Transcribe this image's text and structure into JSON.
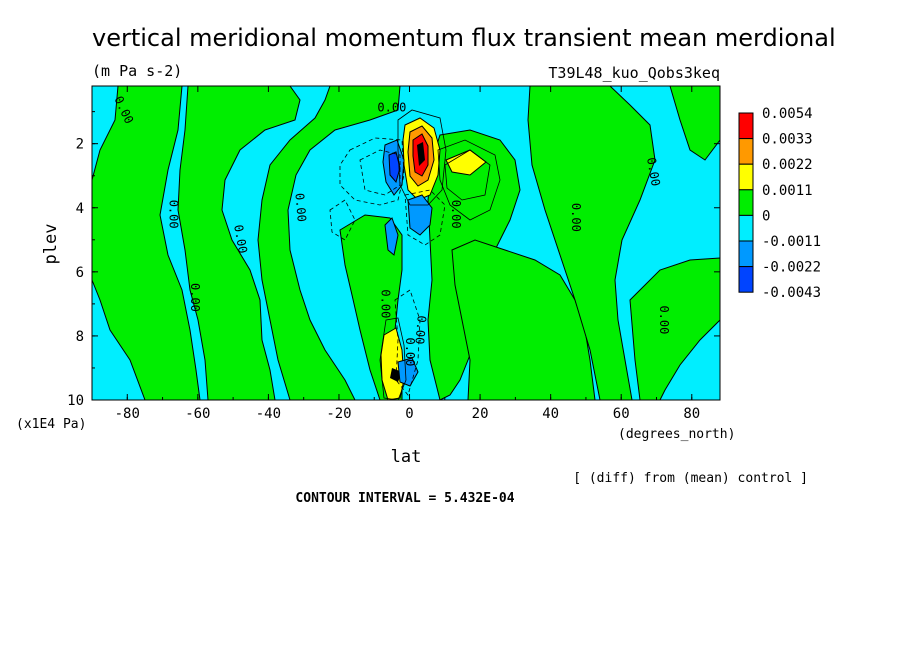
{
  "chart_data": {
    "type": "heatmap",
    "title": "vertical meridional momentum flux transient mean merdional",
    "units": "(m Pa s-2)",
    "run_label": "T39L48_kuo_Qobs3keq",
    "xlabel": "lat",
    "xunits": "(degrees_north)",
    "ylabel": "plev",
    "yunits": "(x1E4 Pa)",
    "xlim": [
      -90,
      88
    ],
    "ylim": [
      0.2,
      10
    ],
    "y_inverted": true,
    "x_ticks": [
      "-80",
      "-60",
      "-40",
      "-20",
      "0",
      "20",
      "40",
      "60",
      "80"
    ],
    "y_ticks": [
      "2",
      "4",
      "6",
      "8",
      "10"
    ],
    "contour_interval": "CONTOUR INTERVAL = 5.432E-04",
    "comparison_note": "[ (diff) from (mean) control ]",
    "colorbar": {
      "levels": [
        "0.0054",
        "0.0033",
        "0.0022",
        "0.0011",
        "0",
        "-0.0011",
        "-0.0022",
        "-0.0043"
      ],
      "colors": [
        "#ff0000",
        "#ff9900",
        "#ffff00",
        "#00ee00",
        "#00eeff",
        "#0099ff",
        "#0044ff"
      ]
    },
    "contour_labels": [
      "0.00",
      "0.00",
      "0.00",
      "0.00",
      "0.00",
      "0.00",
      "0.00",
      "0.00",
      "0.00",
      "0.00",
      "0.00",
      "0.00",
      "0.00"
    ],
    "regions": [
      {
        "band": "0..0.0011",
        "description": "positive",
        "lat": [
          -80,
          -50
        ],
        "plev": [
          0.2,
          10
        ]
      },
      {
        "band": "0.0033..0.0054",
        "extreme": "max",
        "lat": 4,
        "plev": 2.3
      },
      {
        "band": "0.0011..0.0022",
        "lat": 17,
        "plev": 2.5
      },
      {
        "band": "0.0011..0.0022",
        "lat": -3,
        "plev": 9.0
      },
      {
        "band": "-0.0022..-0.0011",
        "lat": -4,
        "plev": 2.8
      },
      {
        "band": "-0.0022..-0.0011",
        "lat": 5,
        "plev": 4.2
      }
    ]
  }
}
